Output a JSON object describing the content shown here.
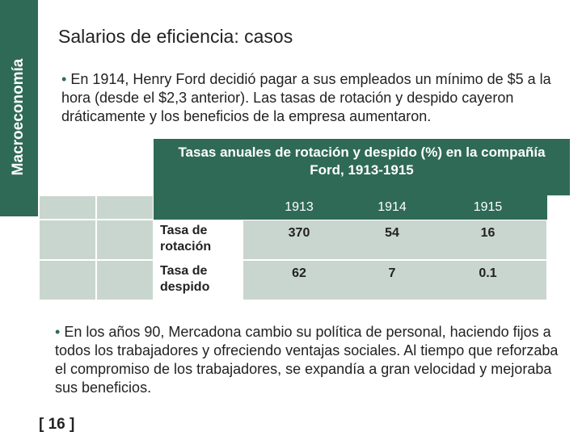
{
  "header": {
    "side_label": "Macroeconomía",
    "title": "Salarios de eficiencia: casos"
  },
  "bullets": [
    "En 1914, Henry Ford decidió pagar a sus empleados un mínimo de $5 a la hora (desde el $2,3 anterior). Las tasas de rotación y despido cayeron dráticamente y los beneficios de la empresa aumentaron.",
    "En los años 90, Mercadona cambio su política de personal, haciendo fijos a todos los trabajadores y ofreciendo ventajas sociales. Al tiempo que reforzaba el compromiso de los trabajadores, se expandía a gran velocidad y mejoraba sus beneficios."
  ],
  "table": {
    "title": "Tasas anuales de rotación y despido (%) en la compañía Ford, 1913-1915",
    "columns": [
      "1913",
      "1914",
      "1915"
    ],
    "rows": [
      {
        "label": "Tasa de rotación",
        "values": [
          370,
          54,
          16
        ]
      },
      {
        "label": "Tasa de despido",
        "values": [
          62,
          7,
          0.1
        ]
      }
    ]
  },
  "footer": {
    "page": "[ 16 ]"
  }
}
